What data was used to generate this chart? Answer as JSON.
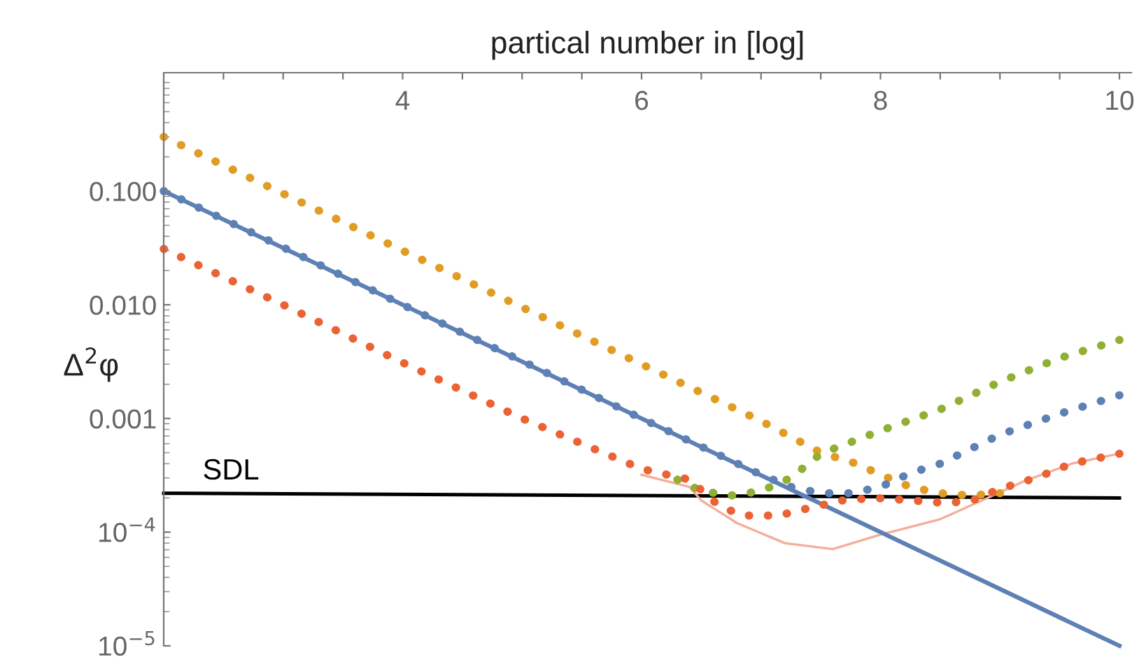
{
  "chart_data": {
    "type": "line",
    "xlabel": "partical number in [log]",
    "ylabel": "Δ$^{2}$φ",
    "log": "y",
    "xlim": [
      2,
      10.1
    ],
    "ylim": [
      1e-05,
      1.1
    ],
    "xticks": [
      {
        "value": 2.5,
        "label": null
      },
      {
        "value": 3,
        "label": null
      },
      {
        "value": 3.5,
        "label": null
      },
      4,
      {
        "value": 4.5,
        "label": null
      },
      {
        "value": 5,
        "label": null
      },
      {
        "value": 5.5,
        "label": null
      },
      6,
      {
        "value": 6.5,
        "label": null
      },
      {
        "value": 7,
        "label": null
      },
      {
        "value": 7.5,
        "label": null
      },
      8,
      {
        "value": 8.5,
        "label": null
      },
      {
        "value": 9,
        "label": null
      },
      {
        "value": 9.5,
        "label": null
      },
      10
    ],
    "yticks": [
      {
        "value": 1e-05,
        "label": "10$^{−5}$"
      },
      {
        "value": 0.0001,
        "label": "10$^{−4}$"
      },
      {
        "value": 0.001,
        "label": "0.001"
      },
      {
        "value": 0.01,
        "label": "0.010"
      },
      {
        "value": 0.1,
        "label": "0.100"
      }
    ],
    "grid": false,
    "legend": false,
    "series": [
      {
        "name": "SDL",
        "color": "#000000",
        "line_style": "solid",
        "x": [
          2,
          10
        ],
        "values": [
          0.00022,
          0.0002
        ]
      },
      {
        "color": "#f4ae9a",
        "line_style": "solid",
        "x": [
          6.0,
          6.4,
          6.5,
          6.8,
          7.2,
          7.6,
          8.0,
          8.5,
          8.85,
          9.2,
          9.6,
          10
        ],
        "values": [
          0.00032,
          0.00025,
          0.00019,
          0.00012,
          8e-05,
          7.1e-05,
          9.5e-05,
          0.00013,
          0.00019,
          0.00028,
          0.0004,
          0.00049
        ]
      },
      {
        "color": "#5e81b5",
        "line_style": "solid",
        "x": [
          2,
          4,
          6,
          8,
          10
        ],
        "values": [
          0.1,
          0.01,
          0.001,
          0.0001,
          1e-05
        ]
      },
      {
        "color": "#e19c24",
        "line_style": "dotted",
        "x": [
          2,
          3,
          4,
          5,
          6,
          7,
          7.5,
          7.8,
          8.0,
          8.25,
          8.5,
          8.75,
          9.0
        ],
        "values": [
          0.3,
          0.095,
          0.03,
          0.0095,
          0.003,
          0.00095,
          0.0005,
          0.0004,
          0.00032,
          0.00025,
          0.00022,
          0.00021,
          0.00022
        ]
      },
      {
        "color": "#8fb032",
        "line_style": "dotted",
        "x": [
          6.3,
          6.5,
          6.75,
          7.0,
          7.25,
          7.5,
          8.0,
          8.5,
          9.0,
          9.5,
          10
        ],
        "values": [
          0.00029,
          0.00023,
          0.00021,
          0.00023,
          0.0003,
          0.00049,
          0.00078,
          0.0012,
          0.0021,
          0.0034,
          0.0049
        ]
      },
      {
        "color": "#5e81b5",
        "line_style": "dotted",
        "x": [
          2,
          3,
          4,
          5,
          6,
          7,
          7.25,
          7.5,
          7.75,
          8.0,
          8.25,
          8.5,
          9.0,
          9.5,
          10
        ],
        "values": [
          0.1,
          0.032,
          0.01,
          0.0032,
          0.001,
          0.00032,
          0.00025,
          0.00022,
          0.00022,
          0.00025,
          0.00033,
          0.0004,
          0.00072,
          0.0011,
          0.0016
        ]
      },
      {
        "color": "#eb6235",
        "line_style": "dotted",
        "x": [
          2,
          3,
          4,
          5,
          6,
          6.4,
          6.65,
          6.85,
          7.15,
          7.37,
          7.68,
          7.95,
          8.26,
          8.55,
          8.77,
          9.0,
          9.3,
          9.6,
          10
        ],
        "values": [
          0.031,
          0.01,
          0.0031,
          0.001,
          0.00036,
          0.00029,
          0.00017,
          0.00014,
          0.00014,
          0.00016,
          0.00019,
          0.0002,
          0.00019,
          0.00018,
          0.00019,
          0.00024,
          0.0003,
          0.0004,
          0.00049
        ]
      }
    ]
  }
}
